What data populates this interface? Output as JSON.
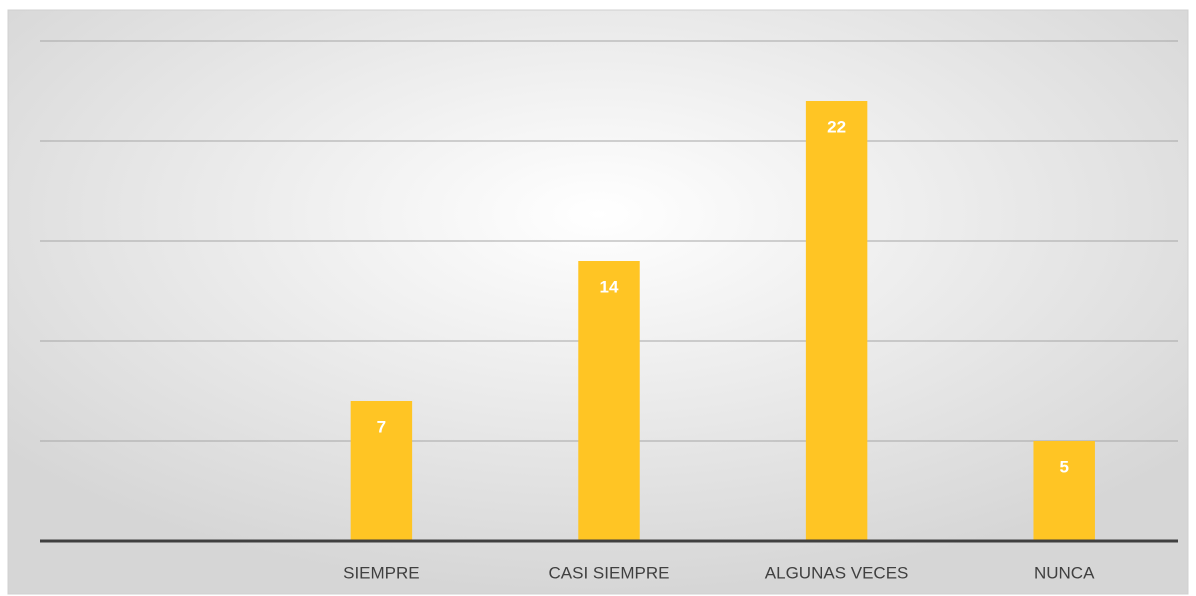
{
  "chart_data": {
    "type": "bar",
    "categories": [
      null,
      "SIEMPRE",
      "CASI SIEMPRE",
      "ALGUNAS VECES",
      "NUNCA"
    ],
    "values": [
      null,
      7,
      14,
      22,
      5
    ],
    "color": "#ffc524",
    "ylim": [
      0,
      25
    ],
    "yticks": [
      0,
      5,
      10,
      15,
      20,
      25
    ],
    "grid": true
  }
}
